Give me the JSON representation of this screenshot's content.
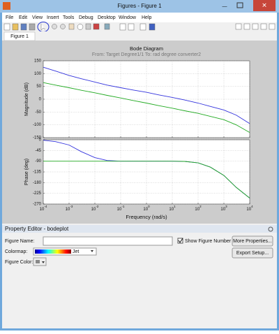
{
  "window": {
    "title": "Figures - Figure 1",
    "menu": [
      "File",
      "Edit",
      "View",
      "Insert",
      "Tools",
      "Debug",
      "Desktop",
      "Window",
      "Help"
    ],
    "tab": "Figure 1"
  },
  "chart_data": [
    {
      "type": "line",
      "title": "Bode Diagram",
      "subtitle": "From: Target Degree1/1  To: rad degree converter2",
      "ylabel": "Magnitude (dB)",
      "xscale": "log",
      "grid": true,
      "x": [
        0.0001,
        0.0003,
        0.001,
        0.003,
        0.01,
        0.03,
        0.1,
        0.3,
        1,
        3,
        10,
        30,
        100,
        300,
        1000,
        3000,
        10000
      ],
      "xlim": [
        0.0001,
        10000
      ],
      "xticks": [
        0.0001,
        0.001,
        0.01,
        0.1,
        1,
        10,
        100,
        1000,
        10000
      ],
      "ylim": [
        -150,
        150
      ],
      "yticks": [
        -150,
        -100,
        -50,
        0,
        50,
        100,
        150
      ],
      "series": [
        {
          "color": "#3333dd",
          "values": [
            125,
            110,
            93,
            80,
            67,
            55,
            45,
            36,
            27,
            17,
            7,
            -3,
            -15,
            -28,
            -42,
            -62,
            -95
          ]
        },
        {
          "color": "#22aa22",
          "values": [
            65,
            55,
            45,
            35,
            25,
            15,
            5,
            -5,
            -15,
            -25,
            -35,
            -45,
            -55,
            -67,
            -80,
            -100,
            -130
          ]
        }
      ]
    },
    {
      "type": "line",
      "ylabel": "Phase (deg)",
      "xlabel": "Frequency  (rad/s)",
      "xscale": "log",
      "grid": true,
      "x": [
        0.0001,
        0.0003,
        0.001,
        0.003,
        0.01,
        0.03,
        0.1,
        0.3,
        1,
        3,
        10,
        30,
        100,
        300,
        1000,
        3000,
        10000
      ],
      "xlim": [
        0.0001,
        10000
      ],
      "xticks": [
        {
          "value": 0.0001,
          "label": "10",
          "exponent": "-4"
        },
        {
          "value": 0.001,
          "label": "10",
          "exponent": "-3"
        },
        {
          "value": 0.01,
          "label": "10",
          "exponent": "-2"
        },
        {
          "value": 0.1,
          "label": "10",
          "exponent": "-1"
        },
        {
          "value": 1,
          "label": "10",
          "exponent": "0"
        },
        {
          "value": 10,
          "label": "10",
          "exponent": "1"
        },
        {
          "value": 100,
          "label": "10",
          "exponent": "2"
        },
        {
          "value": 1000,
          "label": "10",
          "exponent": "3"
        },
        {
          "value": 10000,
          "label": "10",
          "exponent": "4"
        }
      ],
      "ylim": [
        -270,
        0
      ],
      "yticks": [
        -270,
        -225,
        -180,
        -135,
        -90,
        -45,
        0
      ],
      "series": [
        {
          "color": "#3333dd",
          "values": [
            -2,
            -8,
            -22,
            -50,
            -75,
            -87,
            -90,
            -90,
            -90,
            -90,
            -90,
            -91,
            -97,
            -115,
            -150,
            -200,
            -245
          ]
        },
        {
          "color": "#22aa22",
          "values": [
            -90,
            -90,
            -90,
            -90,
            -90,
            -90,
            -90,
            -90,
            -90,
            -90,
            -90,
            -91,
            -97,
            -115,
            -150,
            -200,
            -245
          ]
        }
      ]
    }
  ],
  "property_editor": {
    "title": "Property Editor - bodeplot",
    "figure_name_label": "Figure Name:",
    "show_figure_number": "Show Figure Number",
    "more_properties": "More Properties...",
    "colormap_label": "Colormap:",
    "colormap_value": "Jet",
    "export_setup": "Export Setup...",
    "figure_color_label": "Figure Color:"
  }
}
